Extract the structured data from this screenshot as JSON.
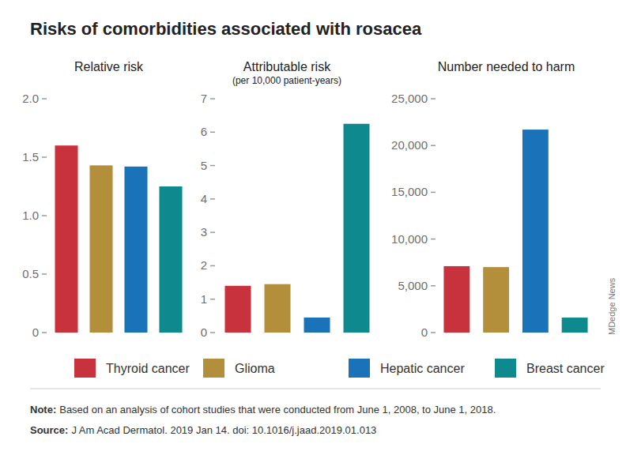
{
  "title": "Risks of comorbidities associated with rosacea",
  "chart_data": [
    {
      "type": "bar",
      "title": "Relative risk",
      "categories": [
        "Thyroid cancer",
        "Glioma",
        "Hepatic cancer",
        "Breast cancer"
      ],
      "values": [
        1.6,
        1.43,
        1.42,
        1.25
      ],
      "colors": [
        "#c8323c",
        "#b38f3b",
        "#1a72b8",
        "#0e8a8f"
      ],
      "ylim": [
        0,
        2
      ],
      "yticks": [
        0,
        0.5,
        {
          "value": 1,
          "label": "1.0"
        },
        1.5,
        {
          "value": 2,
          "label": "2.0"
        }
      ],
      "grid": false,
      "tick_labels": "y",
      "legend": "bottom"
    },
    {
      "type": "bar",
      "title": "Attributable risk",
      "subtitle": "(per 10,000 patient-years)",
      "categories": [
        "Thyroid cancer",
        "Glioma",
        "Hepatic cancer",
        "Breast cancer"
      ],
      "values": [
        1.4,
        1.45,
        0.45,
        6.25
      ],
      "colors": [
        "#c8323c",
        "#b38f3b",
        "#1a72b8",
        "#0e8a8f"
      ],
      "ylim": [
        0,
        7
      ],
      "yticks": [
        0,
        1,
        2,
        3,
        4,
        5,
        6,
        7
      ],
      "grid": false,
      "tick_labels": "y"
    },
    {
      "type": "bar",
      "title": "Number needed to harm",
      "categories": [
        "Thyroid cancer",
        "Glioma",
        "Hepatic cancer",
        "Breast cancer"
      ],
      "values": [
        7100,
        7000,
        21700,
        1600
      ],
      "colors": [
        "#c8323c",
        "#b38f3b",
        "#1a72b8",
        "#0e8a8f"
      ],
      "ylim": [
        0,
        25000
      ],
      "yticks": [
        0,
        {
          "value": 5000,
          "label": "5,000"
        },
        {
          "value": 10000,
          "label": "10,000"
        },
        {
          "value": 15000,
          "label": "15,000"
        },
        {
          "value": 20000,
          "label": "20,000"
        },
        {
          "value": 25000,
          "label": "25,000"
        }
      ],
      "grid": false,
      "tick_labels": "y"
    }
  ],
  "note": {
    "label": "Note:",
    "text": "Based on an analysis of cohort studies that were conducted from June 1, 2008, to June 1, 2018."
  },
  "source": {
    "label": "Source:",
    "text": "J Am Acad Dermatol. 2019 Jan 14. doi: 10.1016/j.jaad.2019.01.013"
  },
  "credit": "MDedge News"
}
